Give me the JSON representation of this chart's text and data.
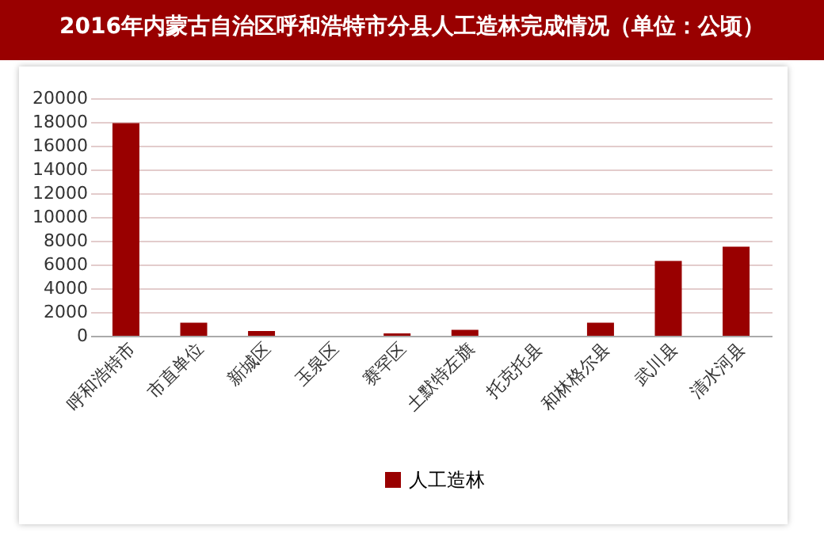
{
  "chart_data": {
    "type": "bar",
    "title": "2016年内蒙古自治区呼和浩特市分县人工造林完成情况（单位：公顷）",
    "categories": [
      "呼和浩特市",
      "市直单位",
      "新城区",
      "玉泉区",
      "赛罕区",
      "土默特左旗",
      "托克托县",
      "和林格尔县",
      "武川县",
      "清水河县"
    ],
    "series": [
      {
        "name": "人工造林",
        "color": "#990000",
        "values": [
          17900,
          1100,
          400,
          0,
          200,
          500,
          0,
          1100,
          6300,
          7500
        ]
      }
    ],
    "ylim": [
      0,
      20000
    ],
    "yticks": [
      0,
      2000,
      4000,
      6000,
      8000,
      10000,
      12000,
      14000,
      16000,
      18000,
      20000
    ],
    "grid": "y",
    "legend": "bottom"
  }
}
